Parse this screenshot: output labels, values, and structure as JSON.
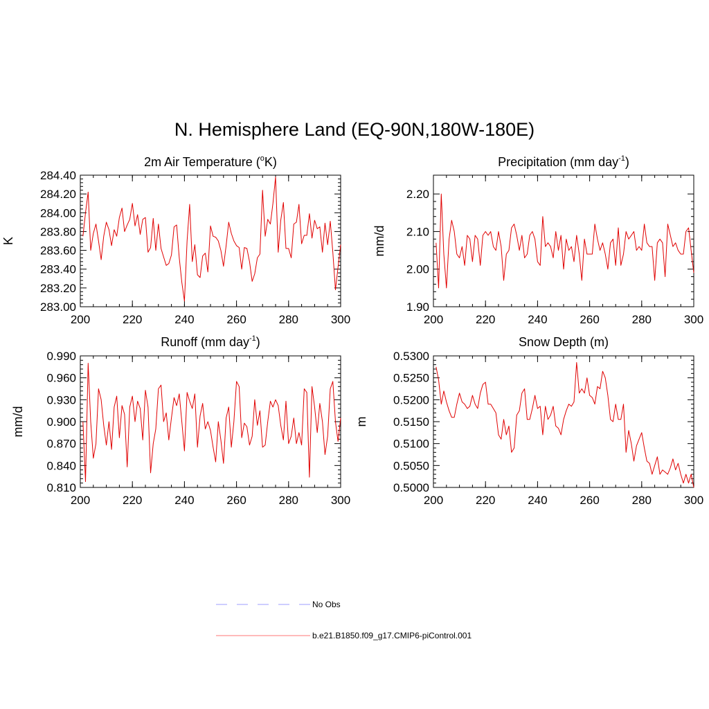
{
  "title": "N. Hemisphere Land (EQ-90N,180W-180E)",
  "colors": {
    "model_line": "#e00000",
    "obs_line": "#b0b0ff",
    "axis": "#000000"
  },
  "chart_data": [
    {
      "type": "line",
      "title": "2m Air Temperature (",
      "title_sup": "o",
      "title_tail": "K)",
      "ylabel": "K",
      "xlabel": "",
      "xlim": [
        200,
        300
      ],
      "ylim": [
        283.0,
        284.4
      ],
      "xticks": [
        "200",
        "220",
        "240",
        "260",
        "280",
        "300"
      ],
      "yticks": [
        "283.00",
        "283.20",
        "283.40",
        "283.60",
        "283.80",
        "284.00",
        "284.20",
        "284.40"
      ],
      "series": [
        {
          "name": "b.e21.B1850.f09_g17.CMIP6-piControl.001",
          "values": [
            283.75,
            284.0,
            284.22,
            283.6,
            283.78,
            283.88,
            283.7,
            283.5,
            283.75,
            283.9,
            283.82,
            283.65,
            283.82,
            283.75,
            283.95,
            284.05,
            283.8,
            283.87,
            283.93,
            284.1,
            283.86,
            283.98,
            283.77,
            283.93,
            283.95,
            283.58,
            283.63,
            283.94,
            283.6,
            283.88,
            283.62,
            283.53,
            283.44,
            283.46,
            283.55,
            283.85,
            283.87,
            283.52,
            283.26,
            283.06,
            283.7,
            284.09,
            283.48,
            283.66,
            283.34,
            283.31,
            283.54,
            283.57,
            283.37,
            283.86,
            283.75,
            283.74,
            283.7,
            283.6,
            283.43,
            283.65,
            283.9,
            283.78,
            283.7,
            283.65,
            283.63,
            283.4,
            283.63,
            283.62,
            283.48,
            283.27,
            283.35,
            283.52,
            283.56,
            284.24,
            283.75,
            283.93,
            283.88,
            284.1,
            284.38,
            283.58,
            283.92,
            284.11,
            283.62,
            283.62,
            283.52,
            283.88,
            283.9,
            284.09,
            283.67,
            283.76,
            283.76,
            283.99,
            283.73,
            283.92,
            283.83,
            283.85,
            283.58,
            283.89,
            283.66,
            283.91,
            283.58,
            283.18,
            283.42,
            283.66
          ]
        }
      ]
    },
    {
      "type": "line",
      "title": "Precipitation (mm day",
      "title_sup": "-1",
      "title_tail": ")",
      "ylabel": "mm/d",
      "xlabel": "",
      "xlim": [
        200,
        300
      ],
      "ylim": [
        1.9,
        2.25
      ],
      "xticks": [
        "200",
        "220",
        "240",
        "260",
        "280",
        "300"
      ],
      "yticks": [
        "1.90",
        "2.00",
        "2.10",
        "2.20"
      ],
      "series": [
        {
          "name": "b.e21.B1850.f09_g17.CMIP6-piControl.001",
          "values": [
            2.07,
            1.95,
            2.2,
            2.04,
            1.95,
            2.08,
            2.13,
            2.1,
            2.04,
            2.03,
            2.06,
            2.01,
            2.09,
            2.08,
            2.02,
            2.09,
            2.08,
            2.01,
            2.09,
            2.1,
            2.09,
            2.1,
            2.06,
            2.05,
            2.1,
            2.06,
            1.97,
            2.04,
            2.05,
            2.11,
            2.12,
            2.09,
            2.05,
            2.09,
            2.03,
            2.04,
            2.09,
            2.1,
            2.08,
            2.02,
            2.01,
            2.14,
            2.06,
            2.07,
            2.06,
            2.03,
            2.1,
            2.05,
            2.09,
            2.0,
            2.08,
            2.05,
            2.06,
            2.02,
            2.09,
            2.04,
            1.97,
            2.08,
            2.04,
            2.04,
            2.04,
            2.12,
            2.08,
            2.05,
            2.07,
            2.04,
            2.0,
            2.07,
            2.08,
            2.01,
            2.11,
            2.01,
            2.04,
            2.1,
            2.08,
            2.09,
            2.1,
            2.05,
            2.06,
            2.05,
            2.12,
            2.07,
            2.06,
            2.06,
            1.97,
            2.07,
            2.08,
            2.07,
            1.98,
            2.12,
            2.09,
            2.06,
            2.07,
            2.05,
            2.04,
            2.04,
            2.1,
            2.11,
            2.05,
            1.99
          ]
        }
      ]
    },
    {
      "type": "line",
      "title": "Runoff (mm day",
      "title_sup": "-1",
      "title_tail": ")",
      "ylabel": "mm/d",
      "xlabel": "",
      "xlim": [
        200,
        300
      ],
      "ylim": [
        0.81,
        0.99
      ],
      "xticks": [
        "200",
        "220",
        "240",
        "260",
        "280",
        "300"
      ],
      "yticks": [
        "0.810",
        "0.840",
        "0.870",
        "0.900",
        "0.930",
        "0.960",
        "0.990"
      ],
      "series": [
        {
          "name": "b.e21.B1850.f09_g17.CMIP6-piControl.001",
          "values": [
            0.9,
            0.818,
            0.98,
            0.9,
            0.85,
            0.87,
            0.945,
            0.93,
            0.895,
            0.868,
            0.9,
            0.862,
            0.92,
            0.935,
            0.878,
            0.922,
            0.91,
            0.838,
            0.92,
            0.935,
            0.9,
            0.928,
            0.918,
            0.875,
            0.943,
            0.92,
            0.83,
            0.87,
            0.89,
            0.945,
            0.95,
            0.9,
            0.912,
            0.875,
            0.905,
            0.933,
            0.922,
            0.938,
            0.9,
            0.86,
            0.94,
            0.928,
            0.918,
            0.938,
            0.865,
            0.908,
            0.925,
            0.89,
            0.9,
            0.888,
            0.865,
            0.845,
            0.9,
            0.875,
            0.843,
            0.905,
            0.92,
            0.865,
            0.9,
            0.955,
            0.948,
            0.878,
            0.898,
            0.893,
            0.868,
            0.88,
            0.93,
            0.895,
            0.915,
            0.865,
            0.868,
            0.9,
            0.928,
            0.92,
            0.93,
            0.922,
            0.895,
            0.875,
            0.928,
            0.87,
            0.88,
            0.905,
            0.87,
            0.885,
            0.868,
            0.945,
            0.94,
            0.824,
            0.948,
            0.92,
            0.885,
            0.925,
            0.9,
            0.855,
            0.88,
            0.945,
            0.955,
            0.9,
            0.873,
            0.905
          ]
        }
      ]
    },
    {
      "type": "line",
      "title": "Snow Depth (m)",
      "title_sup": "",
      "title_tail": "",
      "ylabel": "m",
      "xlabel": "",
      "xlim": [
        200,
        300
      ],
      "ylim": [
        0.5,
        0.53
      ],
      "xticks": [
        "200",
        "220",
        "240",
        "260",
        "280",
        "300"
      ],
      "yticks": [
        "0.5000",
        "0.5050",
        "0.5100",
        "0.5150",
        "0.5200",
        "0.5250",
        "0.5300"
      ],
      "series": [
        {
          "name": "b.e21.B1850.f09_g17.CMIP6-piControl.001",
          "values": [
            0.5275,
            0.5245,
            0.519,
            0.522,
            0.5195,
            0.5175,
            0.516,
            0.516,
            0.519,
            0.5215,
            0.5195,
            0.519,
            0.518,
            0.5185,
            0.521,
            0.519,
            0.518,
            0.5215,
            0.5235,
            0.524,
            0.519,
            0.519,
            0.518,
            0.517,
            0.512,
            0.511,
            0.5155,
            0.512,
            0.514,
            0.508,
            0.509,
            0.5165,
            0.5175,
            0.5215,
            0.5225,
            0.5155,
            0.5155,
            0.518,
            0.521,
            0.518,
            0.5185,
            0.512,
            0.5185,
            0.5155,
            0.5165,
            0.5185,
            0.514,
            0.5135,
            0.512,
            0.5155,
            0.5175,
            0.519,
            0.5185,
            0.5195,
            0.5285,
            0.5215,
            0.5225,
            0.5215,
            0.525,
            0.521,
            0.5205,
            0.519,
            0.523,
            0.5225,
            0.5265,
            0.525,
            0.521,
            0.5155,
            0.515,
            0.519,
            0.5155,
            0.5155,
            0.519,
            0.508,
            0.513,
            0.51,
            0.506,
            0.5095,
            0.511,
            0.5125,
            0.509,
            0.506,
            0.5055,
            0.503,
            0.505,
            0.507,
            0.503,
            0.504,
            0.5035,
            0.503,
            0.5045,
            0.5065,
            0.504,
            0.5055,
            0.503,
            0.501,
            0.503,
            0.501,
            0.503,
            0.5
          ]
        }
      ]
    }
  ],
  "legend": [
    {
      "label": "No Obs",
      "style": "dashed"
    },
    {
      "label": "b.e21.B1850.f09_g17.CMIP6-piControl.001",
      "style": "solid"
    }
  ]
}
